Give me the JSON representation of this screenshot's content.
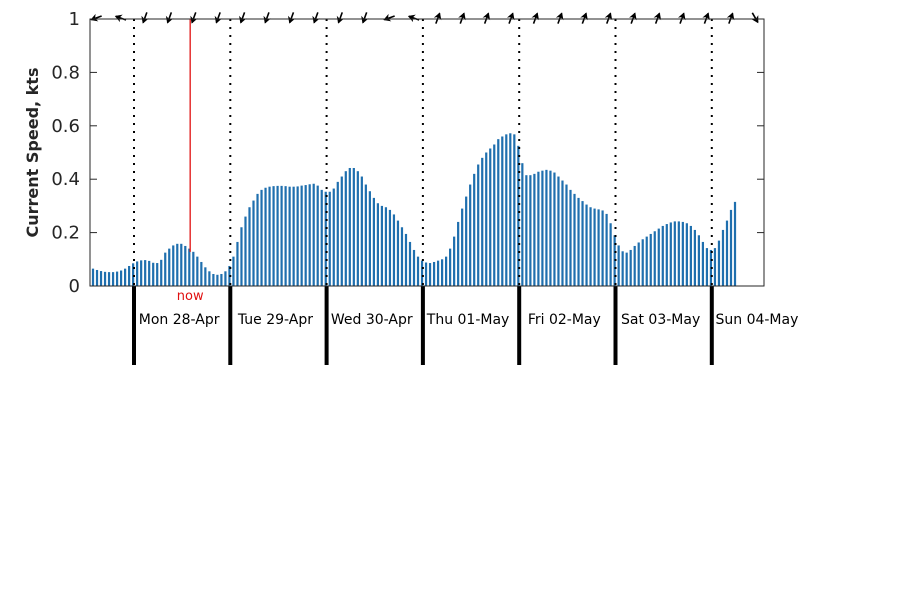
{
  "chart_data": {
    "type": "bar",
    "ylabel": "Current Speed, kts",
    "ylim": [
      0,
      1
    ],
    "yticks": [
      0,
      0.2,
      0.4,
      0.6,
      0.8,
      1
    ],
    "ytick_labels": [
      "0",
      "0.2",
      "0.4",
      "0.6",
      "0.8",
      "1"
    ],
    "day_labels": [
      "Mon 28-Apr",
      "Tue 29-Apr",
      "Wed 30-Apr",
      "Thu 01-May",
      "Fri 02-May",
      "Sat 03-May",
      "Sun 04-May"
    ],
    "now_label": "now",
    "now_hour": 25,
    "hours_before_first_midnight": 11,
    "bar_interval_hours": 1,
    "colors": {
      "bar": "#1f6fae",
      "now_line": "#e01010",
      "axis": "#262626",
      "day_divider": "#000000"
    },
    "values": [
      0.065,
      0.06,
      0.056,
      0.053,
      0.052,
      0.052,
      0.054,
      0.058,
      0.065,
      0.075,
      0.085,
      0.092,
      0.096,
      0.097,
      0.094,
      0.087,
      0.086,
      0.098,
      0.125,
      0.14,
      0.152,
      0.158,
      0.158,
      0.15,
      0.14,
      0.128,
      0.11,
      0.09,
      0.07,
      0.055,
      0.045,
      0.042,
      0.045,
      0.055,
      0.075,
      0.11,
      0.165,
      0.22,
      0.26,
      0.295,
      0.32,
      0.345,
      0.36,
      0.368,
      0.372,
      0.374,
      0.375,
      0.375,
      0.374,
      0.372,
      0.372,
      0.373,
      0.376,
      0.378,
      0.381,
      0.383,
      0.376,
      0.36,
      0.353,
      0.353,
      0.365,
      0.39,
      0.41,
      0.43,
      0.442,
      0.442,
      0.43,
      0.41,
      0.38,
      0.355,
      0.33,
      0.31,
      0.3,
      0.295,
      0.285,
      0.268,
      0.245,
      0.22,
      0.195,
      0.165,
      0.135,
      0.11,
      0.095,
      0.088,
      0.086,
      0.09,
      0.095,
      0.1,
      0.11,
      0.14,
      0.185,
      0.24,
      0.29,
      0.335,
      0.38,
      0.42,
      0.455,
      0.48,
      0.5,
      0.515,
      0.53,
      0.55,
      0.56,
      0.568,
      0.572,
      0.568,
      0.525,
      0.46,
      0.415,
      0.415,
      0.42,
      0.428,
      0.432,
      0.435,
      0.432,
      0.425,
      0.41,
      0.395,
      0.38,
      0.36,
      0.345,
      0.33,
      0.318,
      0.305,
      0.295,
      0.29,
      0.287,
      0.283,
      0.27,
      0.235,
      0.19,
      0.152,
      0.13,
      0.125,
      0.135,
      0.15,
      0.163,
      0.175,
      0.185,
      0.195,
      0.205,
      0.215,
      0.225,
      0.232,
      0.238,
      0.242,
      0.242,
      0.24,
      0.235,
      0.225,
      0.21,
      0.19,
      0.165,
      0.142,
      0.135,
      0.142,
      0.17,
      0.21,
      0.245,
      0.285,
      0.315
    ],
    "direction_arrows_deg": [
      160,
      200,
      110,
      110,
      110,
      110,
      110,
      110,
      110,
      110,
      110,
      110,
      160,
      200,
      290,
      290,
      290,
      290,
      290,
      290,
      290,
      290,
      290,
      290,
      290,
      290,
      290,
      60
    ]
  }
}
